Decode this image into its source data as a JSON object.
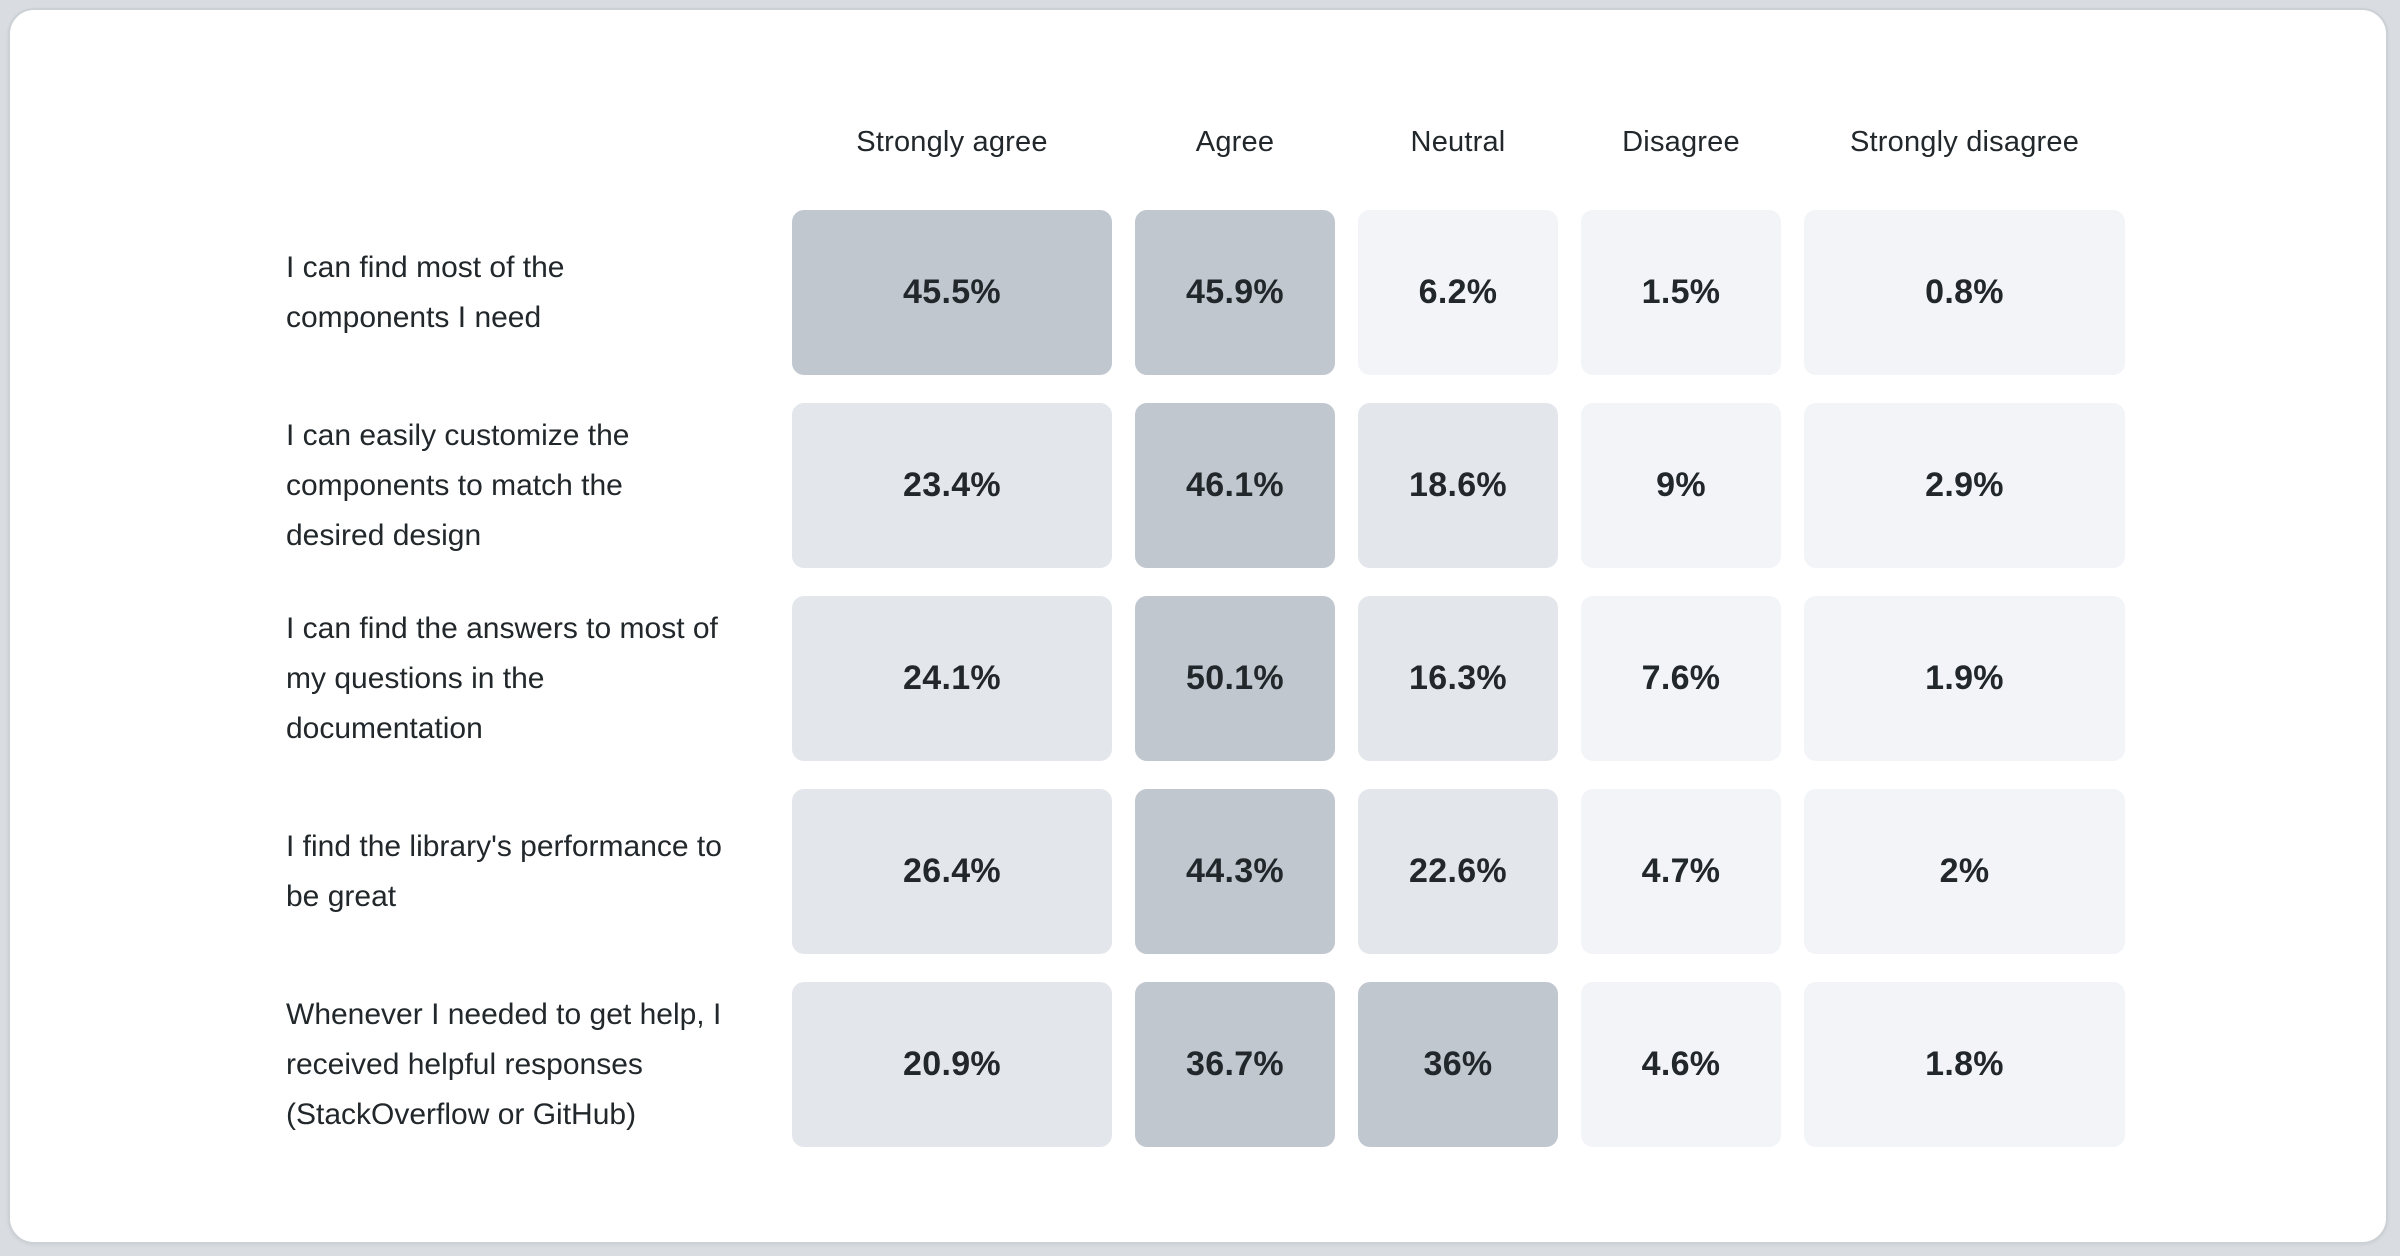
{
  "chart_data": {
    "type": "heatmap",
    "title": "",
    "columns": [
      "Strongly agree",
      "Agree",
      "Neutral",
      "Disagree",
      "Strongly disagree"
    ],
    "rows": [
      {
        "label": "I can find most of the components I need",
        "values": [
          45.5,
          45.9,
          6.2,
          1.5,
          0.8
        ],
        "display": [
          "45.5%",
          "45.9%",
          "6.2%",
          "1.5%",
          "0.8%"
        ]
      },
      {
        "label": "I can easily customize the components to match the desired design",
        "values": [
          23.4,
          46.1,
          18.6,
          9,
          2.9
        ],
        "display": [
          "23.4%",
          "46.1%",
          "18.6%",
          "9%",
          "2.9%"
        ]
      },
      {
        "label": "I can find the answers to most of my questions in the documentation",
        "values": [
          24.1,
          50.1,
          16.3,
          7.6,
          1.9
        ],
        "display": [
          "24.1%",
          "50.1%",
          "16.3%",
          "7.6%",
          "1.9%"
        ]
      },
      {
        "label": "I find the library's performance to be great",
        "values": [
          26.4,
          44.3,
          22.6,
          4.7,
          2
        ],
        "display": [
          "26.4%",
          "44.3%",
          "22.6%",
          "4.7%",
          "2%"
        ]
      },
      {
        "label": "Whenever I needed to get help, I received helpful responses (StackOverflow or GitHub)",
        "values": [
          20.9,
          36.7,
          36,
          4.6,
          1.8
        ],
        "display": [
          "20.9%",
          "36.7%",
          "36%",
          "4.6%",
          "1.8%"
        ]
      }
    ],
    "color_scale": {
      "bins": [
        {
          "min": 30,
          "color": "#c1c7cf"
        },
        {
          "min": 10,
          "color": "#e3e7ec"
        },
        {
          "min": 0,
          "color": "#f2f4f7"
        }
      ]
    },
    "layout": {
      "legend": "none",
      "grid": "off",
      "value_text_color": "#21272a",
      "header_text_color": "#21272a",
      "label_text_color": "#21272a",
      "card_background": "#ffffff",
      "page_background": "#d9dce0"
    }
  }
}
